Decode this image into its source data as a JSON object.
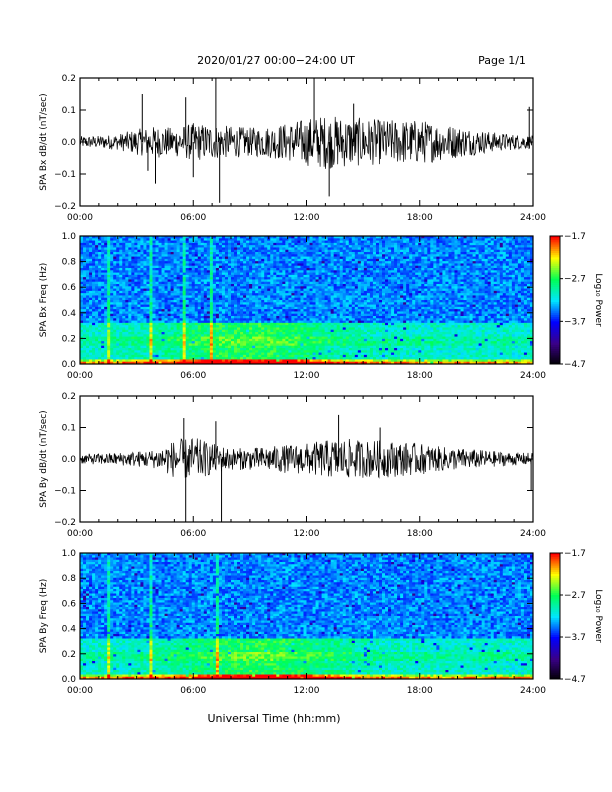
{
  "header": {
    "title": "2020/01/27  00:00−24:00 UT",
    "page": "Page 1/1"
  },
  "footer": {
    "xlabel": "Universal Time (hh:mm)"
  },
  "chart_data": [
    {
      "type": "line",
      "ylabel": "SPA Bx dB/dt (nT/sec)",
      "xlim": [
        0,
        24
      ],
      "ylim": [
        -0.2,
        0.2
      ],
      "xticks": [
        "00:00",
        "06:00",
        "12:00",
        "18:00",
        "24:00"
      ],
      "yticks": [
        "0.2",
        "0.1",
        "0.0",
        "−0.1",
        "−0.2"
      ],
      "envelope": {
        "x": [
          0,
          1,
          2,
          3,
          4,
          5,
          6,
          7,
          8,
          9,
          10,
          11,
          12,
          13,
          14,
          15,
          16,
          17,
          18,
          19,
          20,
          21,
          22,
          23,
          24
        ],
        "amplitude": [
          0.018,
          0.02,
          0.025,
          0.04,
          0.05,
          0.045,
          0.06,
          0.055,
          0.05,
          0.045,
          0.05,
          0.06,
          0.075,
          0.085,
          0.08,
          0.075,
          0.07,
          0.07,
          0.07,
          0.06,
          0.05,
          0.04,
          0.03,
          0.025,
          0.02
        ]
      },
      "spikes": [
        {
          "x": 3.3,
          "y": 0.15
        },
        {
          "x": 3.6,
          "y": -0.09
        },
        {
          "x": 4.0,
          "y": -0.13
        },
        {
          "x": 5.6,
          "y": 0.14
        },
        {
          "x": 6.0,
          "y": -0.11
        },
        {
          "x": 7.2,
          "y": 0.2
        },
        {
          "x": 7.4,
          "y": -0.19
        },
        {
          "x": 12.4,
          "y": 0.2
        },
        {
          "x": 13.2,
          "y": -0.17
        },
        {
          "x": 14.5,
          "y": 0.12
        },
        {
          "x": 23.8,
          "y": 0.11
        }
      ]
    },
    {
      "type": "heatmap",
      "ylabel": "SPA Bx Freq (Hz)",
      "xlim": [
        0,
        24
      ],
      "ylim": [
        0,
        1.0
      ],
      "xticks": [
        "00:00",
        "06:00",
        "12:00",
        "18:00",
        "24:00"
      ],
      "yticks": [
        "1.0",
        "0.8",
        "0.6",
        "0.4",
        "0.2",
        "0.0"
      ],
      "colorbar": {
        "label": "Log₁₀ Power",
        "ticks": [
          "−1.7",
          "−2.7",
          "−3.7",
          "−4.7"
        ],
        "range": [
          -4.7,
          -1.7
        ]
      },
      "colormap": [
        "#000000",
        "#3a0088",
        "#0000ff",
        "#00e5ff",
        "#00ff55",
        "#ffff00",
        "#ff0000"
      ],
      "features": "Power mostly −4.3 to −3.5 (blue) above 0.3 Hz; bands near 0.1–0.3 Hz at −3.2 (cyan/green); strongest near 0–0.02 Hz (yellow/red); vertical bursts near 01:30, 03:45, 05:30, 07:00."
    },
    {
      "type": "line",
      "ylabel": "SPA By dB/dt (nT/sec)",
      "xlim": [
        0,
        24
      ],
      "ylim": [
        -0.2,
        0.2
      ],
      "xticks": [
        "00:00",
        "06:00",
        "12:00",
        "18:00",
        "24:00"
      ],
      "yticks": [
        "0.2",
        "0.1",
        "0.0",
        "−0.1",
        "−0.2"
      ],
      "envelope": {
        "x": [
          0,
          1,
          2,
          3,
          4,
          5,
          6,
          7,
          8,
          9,
          10,
          11,
          12,
          13,
          14,
          15,
          16,
          17,
          18,
          19,
          20,
          21,
          22,
          23,
          24
        ],
        "amplitude": [
          0.015,
          0.018,
          0.02,
          0.025,
          0.03,
          0.06,
          0.07,
          0.05,
          0.035,
          0.035,
          0.04,
          0.045,
          0.05,
          0.06,
          0.065,
          0.06,
          0.06,
          0.055,
          0.05,
          0.04,
          0.035,
          0.03,
          0.025,
          0.02,
          0.02
        ]
      },
      "spikes": [
        {
          "x": 5.5,
          "y": 0.13
        },
        {
          "x": 5.6,
          "y": -0.2
        },
        {
          "x": 7.2,
          "y": 0.12
        },
        {
          "x": 7.5,
          "y": -0.2
        },
        {
          "x": 13.7,
          "y": 0.14
        },
        {
          "x": 15.9,
          "y": 0.1
        },
        {
          "x": 23.9,
          "y": -0.1
        }
      ]
    },
    {
      "type": "heatmap",
      "ylabel": "SPA By Freq (Hz)",
      "xlim": [
        0,
        24
      ],
      "ylim": [
        0,
        1.0
      ],
      "xticks": [
        "00:00",
        "06:00",
        "12:00",
        "18:00",
        "24:00"
      ],
      "yticks": [
        "1.0",
        "0.8",
        "0.6",
        "0.4",
        "0.2",
        "0.0"
      ],
      "colorbar": {
        "label": "Log₁₀ Power",
        "ticks": [
          "−1.7",
          "−2.7",
          "−3.7",
          "−4.7"
        ],
        "range": [
          -4.7,
          -1.7
        ]
      },
      "colormap": [
        "#000000",
        "#3a0088",
        "#0000ff",
        "#00e5ff",
        "#00ff55",
        "#ffff00",
        "#ff0000"
      ],
      "features": "Similar to Bx: blue background, cyan/green enhancement below 0.3 Hz centred 05:30–13:00, yellow/red band at 0 Hz; vertical bursts near 01:30, 03:45, 07:15."
    }
  ]
}
